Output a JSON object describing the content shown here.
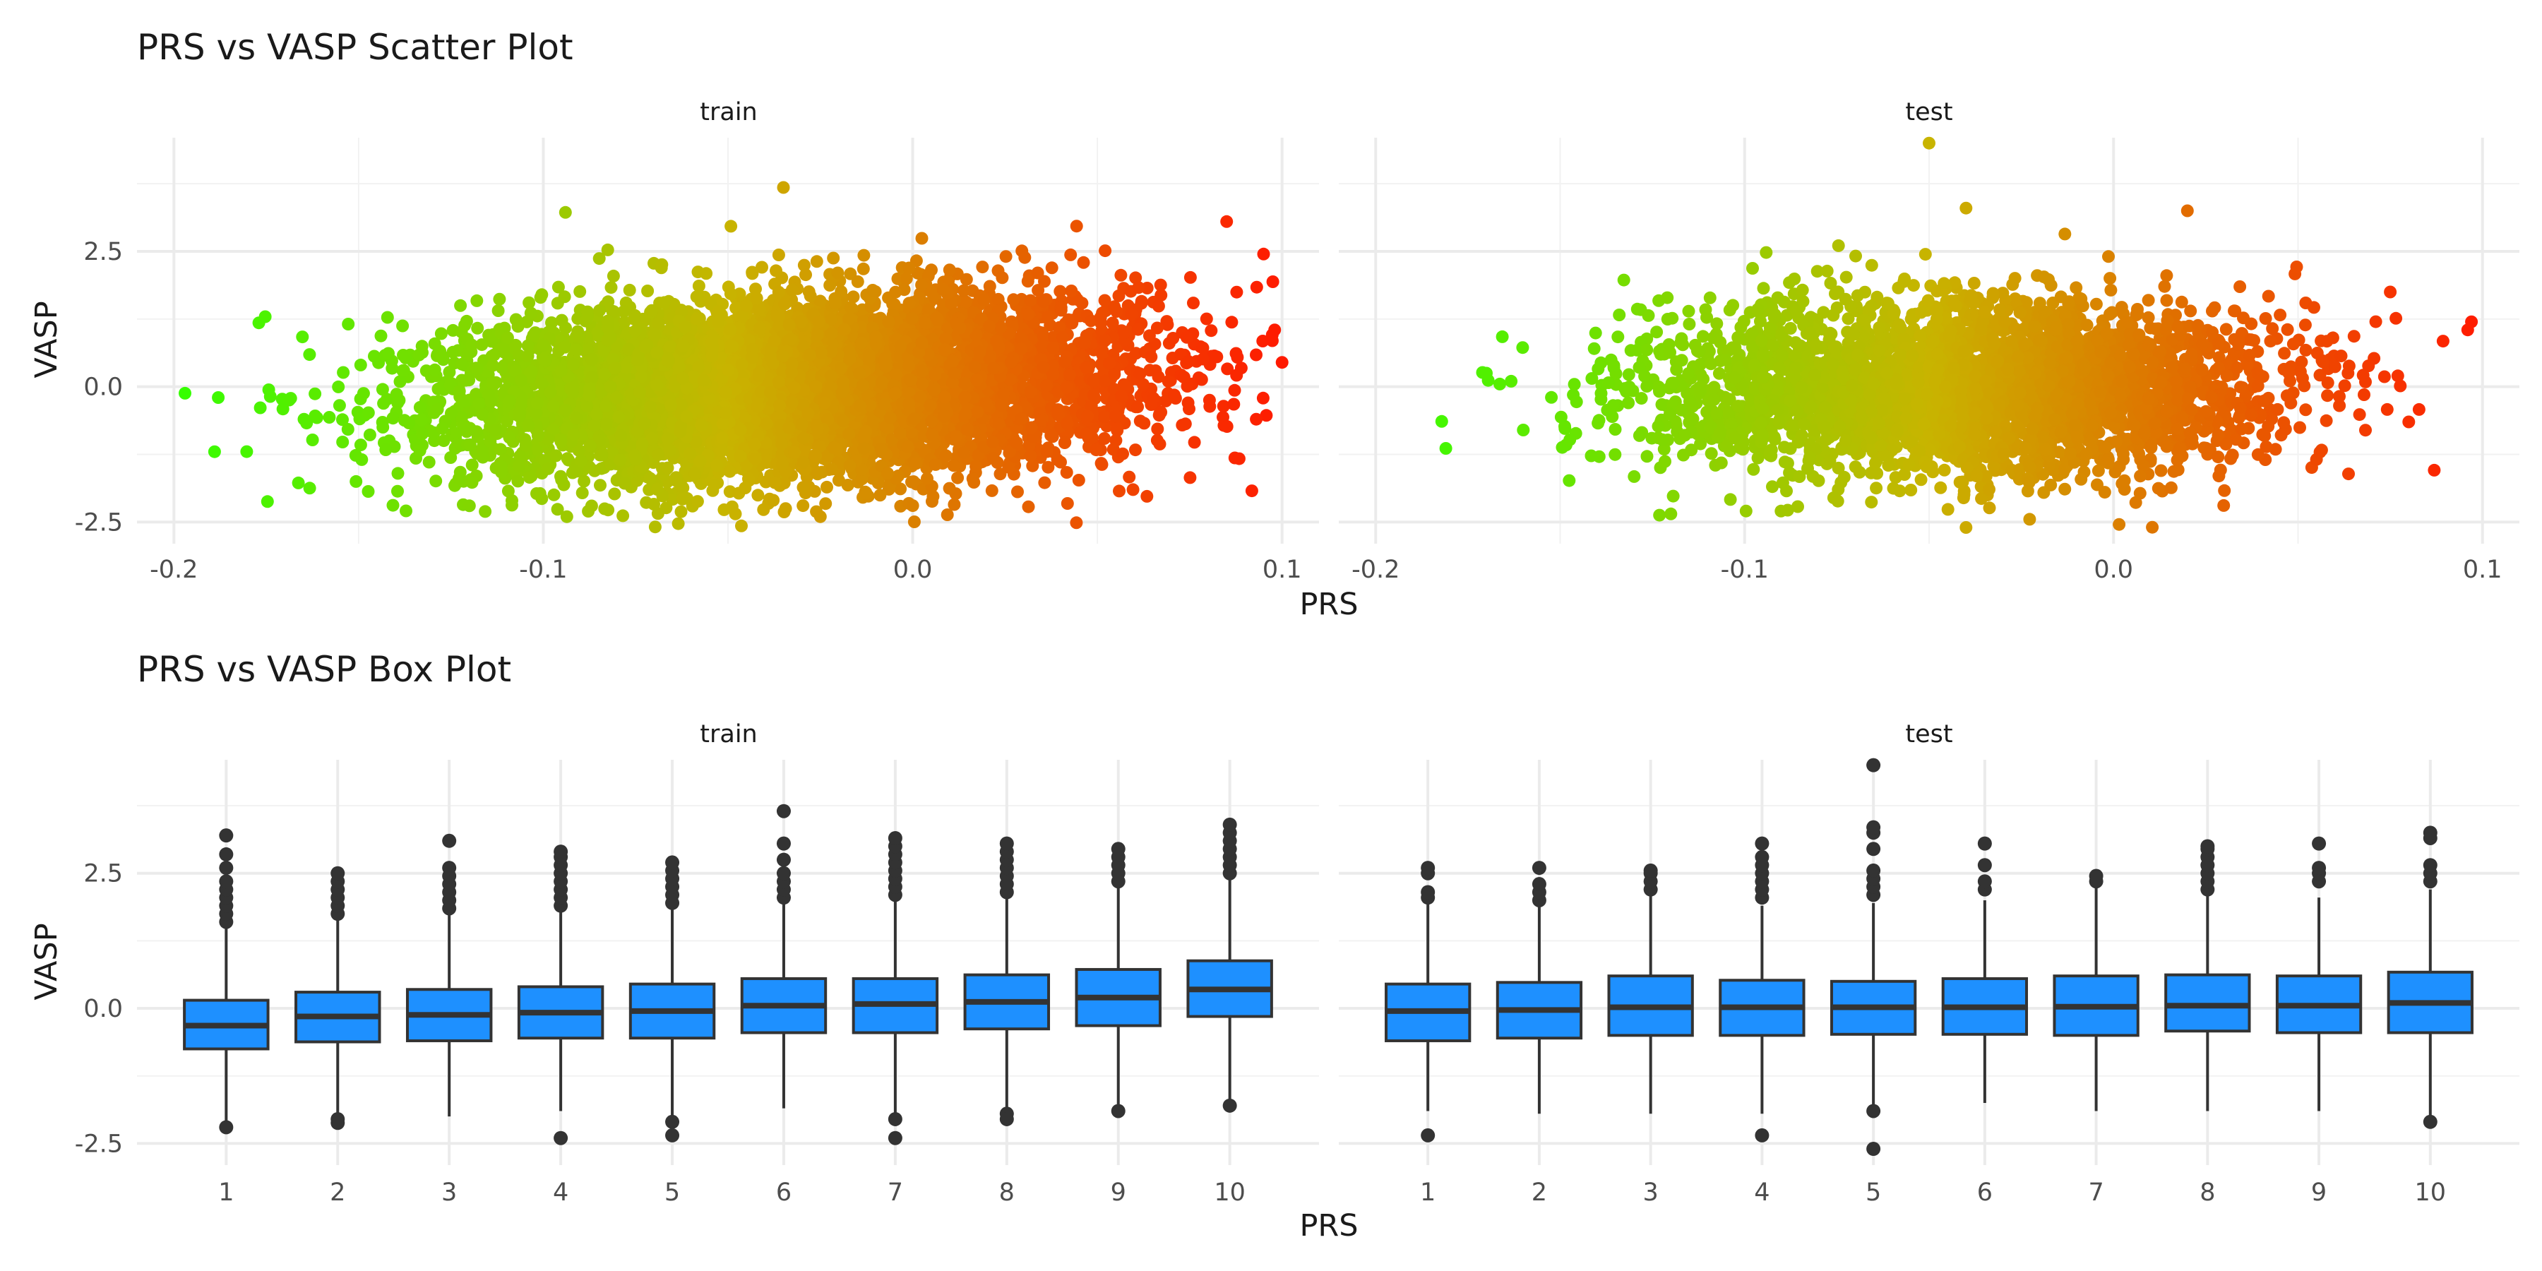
{
  "scatter": {
    "title": "PRS vs VASP Scatter Plot",
    "xlabel": "PRS",
    "ylabel": "VASP",
    "facets": [
      "train",
      "test"
    ],
    "x_ticks": [
      -0.2,
      -0.1,
      0.0,
      0.1
    ],
    "x_tick_labels": [
      "-0.2",
      "-0.1",
      "0.0",
      "0.1"
    ],
    "y_ticks": [
      -2.5,
      0.0,
      2.5
    ],
    "y_tick_labels": [
      "-2.5",
      "0.0",
      "2.5"
    ],
    "xlim": [
      -0.21,
      0.11
    ],
    "ylim": [
      -2.9,
      4.6
    ]
  },
  "box": {
    "title": "PRS vs VASP Box Plot",
    "xlabel": "PRS",
    "ylabel": "VASP",
    "facets": [
      "train",
      "test"
    ],
    "categories": [
      "1",
      "2",
      "3",
      "4",
      "5",
      "6",
      "7",
      "8",
      "9",
      "10"
    ],
    "y_ticks": [
      -2.5,
      0.0,
      2.5
    ],
    "y_tick_labels": [
      "-2.5",
      "0.0",
      "2.5"
    ],
    "ylim": [
      -2.9,
      4.6
    ]
  },
  "colors": {
    "scatter_low": "#33ff00",
    "scatter_mid": "#c8b400",
    "scatter_high": "#ff1a00",
    "box_fill": "#1e90ff",
    "box_line": "#333333",
    "grid": "#ebebeb"
  },
  "chart_data": [
    {
      "type": "scatter",
      "title": "PRS vs VASP Scatter Plot",
      "facet": "train",
      "xlabel": "PRS",
      "ylabel": "VASP",
      "xlim": [
        -0.21,
        0.11
      ],
      "ylim": [
        -2.9,
        4.6
      ],
      "color_by": "PRS",
      "color_scale": [
        "#33ff00",
        "#c8b400",
        "#ff1a00"
      ],
      "cloud": {
        "x_mean": -0.03,
        "x_sd": 0.045,
        "y_mean": 0.0,
        "y_sd": 0.8,
        "approx_n": 9000
      },
      "notable_points": [
        {
          "x": -0.197,
          "y": -0.12
        },
        {
          "x": -0.188,
          "y": -0.2
        },
        {
          "x": -0.189,
          "y": -1.2
        },
        {
          "x": -0.177,
          "y": 1.18
        },
        {
          "x": -0.035,
          "y": 3.68
        },
        {
          "x": -0.094,
          "y": 3.22
        },
        {
          "x": 0.085,
          "y": 3.05
        },
        {
          "x": 0.095,
          "y": 2.45
        },
        {
          "x": 0.098,
          "y": 1.05
        },
        {
          "x": 0.1,
          "y": 0.45
        },
        {
          "x": 0.093,
          "y": -0.6
        },
        {
          "x": -0.025,
          "y": -2.4
        },
        {
          "x": -0.048,
          "y": -2.35
        },
        {
          "x": -0.12,
          "y": -2.2
        }
      ]
    },
    {
      "type": "scatter",
      "title": "PRS vs VASP Scatter Plot",
      "facet": "test",
      "xlabel": "PRS",
      "ylabel": "VASP",
      "xlim": [
        -0.21,
        0.11
      ],
      "ylim": [
        -2.9,
        4.6
      ],
      "color_by": "PRS",
      "color_scale": [
        "#33ff00",
        "#c8b400",
        "#ff1a00"
      ],
      "cloud": {
        "x_mean": -0.04,
        "x_sd": 0.042,
        "y_mean": 0.0,
        "y_sd": 0.8,
        "approx_n": 4000
      },
      "notable_points": [
        {
          "x": -0.05,
          "y": 4.5
        },
        {
          "x": -0.04,
          "y": 3.3
        },
        {
          "x": 0.02,
          "y": 3.25
        },
        {
          "x": 0.097,
          "y": 1.2
        },
        {
          "x": 0.096,
          "y": 1.05
        },
        {
          "x": -0.17,
          "y": 0.25
        },
        {
          "x": -0.16,
          "y": -0.8
        },
        {
          "x": -0.12,
          "y": -2.35
        },
        {
          "x": -0.04,
          "y": -2.6
        },
        {
          "x": 0.08,
          "y": -0.65
        },
        {
          "x": 0.075,
          "y": 1.75
        }
      ]
    },
    {
      "type": "box",
      "title": "PRS vs VASP Box Plot",
      "facet": "train",
      "xlabel": "PRS",
      "ylabel": "VASP",
      "ylim": [
        -2.9,
        4.6
      ],
      "categories": [
        "1",
        "2",
        "3",
        "4",
        "5",
        "6",
        "7",
        "8",
        "9",
        "10"
      ],
      "boxes": [
        {
          "q1": -0.75,
          "median": -0.32,
          "q3": 0.15,
          "whisker_low": -2.1,
          "whisker_high": 1.5,
          "outliers": [
            1.6,
            1.75,
            1.9,
            2.05,
            2.2,
            2.35,
            2.6,
            2.85,
            3.2,
            -2.2
          ]
        },
        {
          "q1": -0.62,
          "median": -0.15,
          "q3": 0.3,
          "whisker_low": -2.0,
          "whisker_high": 1.65,
          "outliers": [
            1.75,
            1.9,
            2.05,
            2.2,
            2.35,
            2.5,
            -2.05,
            -2.12
          ]
        },
        {
          "q1": -0.6,
          "median": -0.12,
          "q3": 0.35,
          "whisker_low": -2.0,
          "whisker_high": 1.75,
          "outliers": [
            1.85,
            2.0,
            2.15,
            2.3,
            2.45,
            2.6,
            3.1
          ]
        },
        {
          "q1": -0.55,
          "median": -0.08,
          "q3": 0.4,
          "whisker_low": -1.9,
          "whisker_high": 1.8,
          "outliers": [
            1.9,
            2.05,
            2.2,
            2.35,
            2.5,
            2.65,
            2.8,
            2.9,
            -2.4
          ]
        },
        {
          "q1": -0.55,
          "median": -0.05,
          "q3": 0.45,
          "whisker_low": -2.0,
          "whisker_high": 1.9,
          "outliers": [
            1.95,
            2.1,
            2.25,
            2.4,
            2.55,
            2.7,
            -2.1,
            -2.35
          ]
        },
        {
          "q1": -0.45,
          "median": 0.05,
          "q3": 0.55,
          "whisker_low": -1.85,
          "whisker_high": 1.95,
          "outliers": [
            2.05,
            2.2,
            2.35,
            2.5,
            2.75,
            3.05,
            3.65
          ]
        },
        {
          "q1": -0.45,
          "median": 0.08,
          "q3": 0.55,
          "whisker_low": -1.95,
          "whisker_high": 2.0,
          "outliers": [
            2.1,
            2.25,
            2.4,
            2.55,
            2.7,
            2.85,
            3.0,
            3.15,
            -2.05,
            -2.4
          ]
        },
        {
          "q1": -0.38,
          "median": 0.12,
          "q3": 0.62,
          "whisker_low": -1.9,
          "whisker_high": 2.05,
          "outliers": [
            2.15,
            2.3,
            2.45,
            2.6,
            2.75,
            2.9,
            3.05,
            -1.95,
            -2.05
          ]
        },
        {
          "q1": -0.32,
          "median": 0.2,
          "q3": 0.72,
          "whisker_low": -1.85,
          "whisker_high": 2.25,
          "outliers": [
            2.35,
            2.5,
            2.65,
            2.8,
            2.95,
            -1.9
          ]
        },
        {
          "q1": -0.15,
          "median": 0.35,
          "q3": 0.88,
          "whisker_low": -1.75,
          "whisker_high": 2.4,
          "outliers": [
            2.5,
            2.65,
            2.8,
            2.95,
            3.1,
            3.25,
            3.4,
            -1.8
          ]
        }
      ]
    },
    {
      "type": "box",
      "title": "PRS vs VASP Box Plot",
      "facet": "test",
      "xlabel": "PRS",
      "ylabel": "VASP",
      "ylim": [
        -2.9,
        4.6
      ],
      "categories": [
        "1",
        "2",
        "3",
        "4",
        "5",
        "6",
        "7",
        "8",
        "9",
        "10"
      ],
      "boxes": [
        {
          "q1": -0.6,
          "median": -0.05,
          "q3": 0.45,
          "whisker_low": -1.9,
          "whisker_high": 1.95,
          "outliers": [
            2.05,
            2.15,
            2.5,
            2.6,
            -2.35
          ]
        },
        {
          "q1": -0.55,
          "median": -0.03,
          "q3": 0.48,
          "whisker_low": -1.95,
          "whisker_high": 1.9,
          "outliers": [
            2.0,
            2.15,
            2.3,
            2.6
          ]
        },
        {
          "q1": -0.5,
          "median": 0.02,
          "q3": 0.6,
          "whisker_low": -1.95,
          "whisker_high": 2.1,
          "outliers": [
            2.2,
            2.35,
            2.5,
            2.55
          ]
        },
        {
          "q1": -0.5,
          "median": 0.02,
          "q3": 0.52,
          "whisker_low": -1.95,
          "whisker_high": 1.9,
          "outliers": [
            2.05,
            2.2,
            2.35,
            2.5,
            2.65,
            2.8,
            3.05,
            -2.35
          ]
        },
        {
          "q1": -0.48,
          "median": 0.02,
          "q3": 0.5,
          "whisker_low": -1.85,
          "whisker_high": 1.95,
          "outliers": [
            2.1,
            2.25,
            2.4,
            2.55,
            2.95,
            3.25,
            3.35,
            4.5,
            -1.9,
            -2.6
          ]
        },
        {
          "q1": -0.48,
          "median": 0.02,
          "q3": 0.55,
          "whisker_low": -1.75,
          "whisker_high": 2.0,
          "outliers": [
            2.2,
            2.35,
            2.65,
            3.05
          ]
        },
        {
          "q1": -0.5,
          "median": 0.03,
          "q3": 0.6,
          "whisker_low": -1.9,
          "whisker_high": 2.3,
          "outliers": [
            2.35,
            2.45
          ]
        },
        {
          "q1": -0.42,
          "median": 0.05,
          "q3": 0.62,
          "whisker_low": -1.9,
          "whisker_high": 2.1,
          "outliers": [
            2.2,
            2.35,
            2.5,
            2.65,
            2.8,
            2.95,
            3.0
          ]
        },
        {
          "q1": -0.45,
          "median": 0.05,
          "q3": 0.6,
          "whisker_low": -1.9,
          "whisker_high": 2.05,
          "outliers": [
            2.35,
            2.5,
            2.6,
            3.05
          ]
        },
        {
          "q1": -0.45,
          "median": 0.1,
          "q3": 0.67,
          "whisker_low": -2.0,
          "whisker_high": 2.2,
          "outliers": [
            2.35,
            2.5,
            2.65,
            3.15,
            3.25,
            -2.1
          ]
        }
      ]
    }
  ]
}
